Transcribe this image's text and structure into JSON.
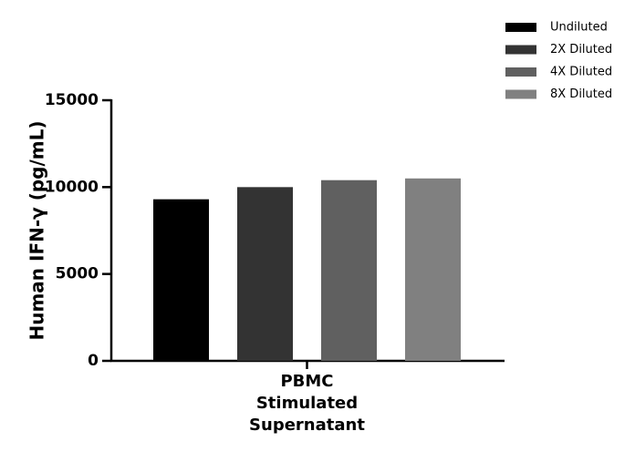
{
  "chart_data": {
    "type": "bar",
    "ylabel": "Human IFN-γ (pg/mL)",
    "categories": [
      "PBMC\nStimulated\nSupernatant"
    ],
    "series": [
      {
        "name": "Undiluted",
        "color": "#000000",
        "values": [
          9300
        ]
      },
      {
        "name": "2X Diluted",
        "color": "#333333",
        "values": [
          10000
        ]
      },
      {
        "name": "4X Diluted",
        "color": "#606060",
        "values": [
          10400
        ]
      },
      {
        "name": "8X Diluted",
        "color": "#808080",
        "values": [
          10500
        ]
      }
    ],
    "ylim": [
      0,
      15000
    ],
    "yticks": [
      0,
      5000,
      10000,
      15000
    ],
    "grid": false,
    "legend": "top-right"
  }
}
